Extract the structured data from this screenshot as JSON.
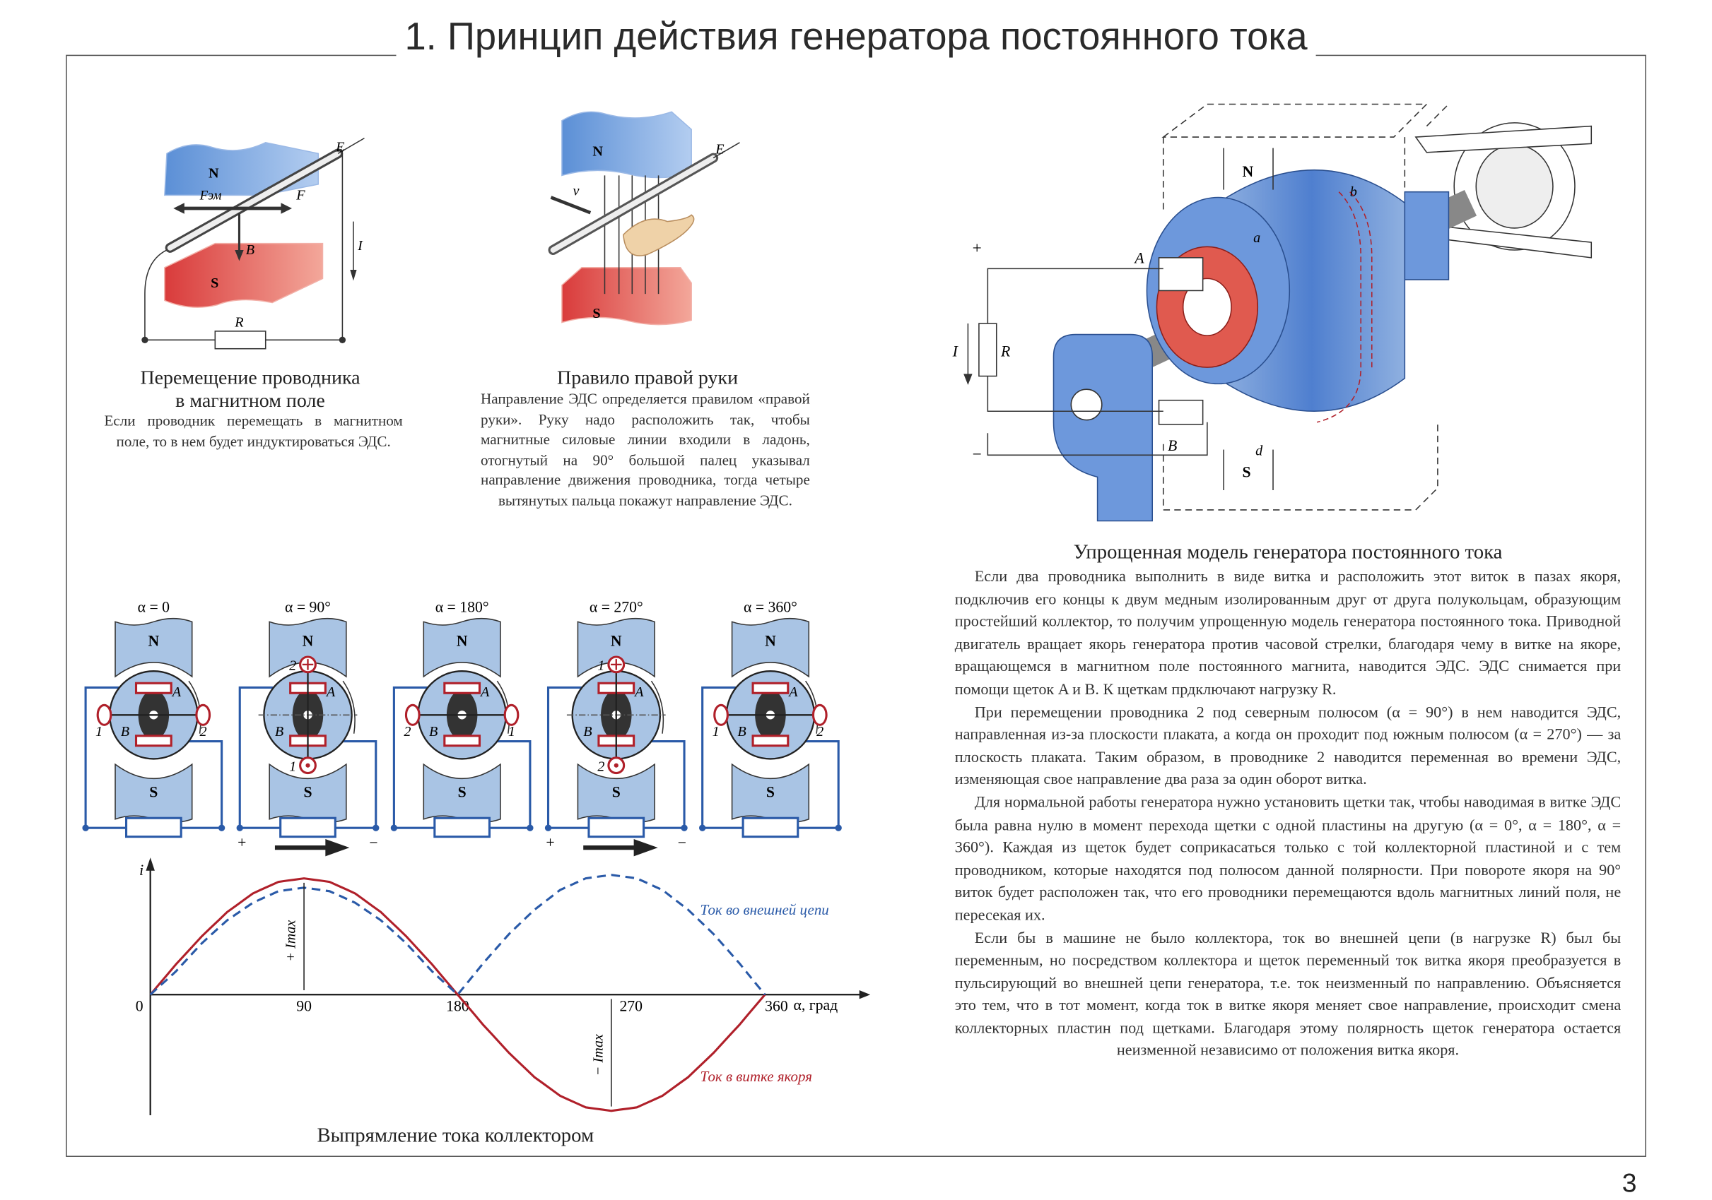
{
  "title": "1. Принцип действия генератора постоянного тока",
  "page_number": "3",
  "colors": {
    "north_pole": "#7ea6db",
    "south_pole": "#e35a5a",
    "wire": "#2a5aa8",
    "conductor": "#b0202a",
    "rotor": "#a9c4e4"
  },
  "figure_conductor": {
    "labels": {
      "north": "N",
      "south": "S",
      "emf": "E",
      "force": "F",
      "force_em": "Fэм",
      "induction": "B",
      "current": "I",
      "resistor": "R"
    },
    "heading_line1": "Перемещение проводника",
    "heading_line2": "в магнитном поле",
    "text": "Если проводник перемещать в магнитном поле, то в нем будет индуктироваться ЭДС."
  },
  "figure_right_hand": {
    "labels": {
      "north": "N",
      "south": "S",
      "emf": "E",
      "velocity": "v"
    },
    "heading": "Правило правой руки",
    "text": "Направление ЭДС определяется правилом «правой руки». Руку надо расположить так, чтобы магнитные силовые линии входили в ладонь, отогнутый на 90° большой палец указывал направление движения проводника, тогда четыре вытянутых пальца покажут направление ЭДС."
  },
  "figure_generator": {
    "labels": {
      "north": "N",
      "south": "S",
      "brush_a": "A",
      "brush_b": "B",
      "point_a": "a",
      "point_b": "b",
      "point_d": "d",
      "resistor": "R",
      "current": "I",
      "plus": "+",
      "minus": "−"
    },
    "heading": "Упрощенная модель генератора постоянного тока",
    "paragraphs": [
      "Если два проводника выполнить в виде витка и расположить этот виток в пазах якоря, подключив его концы к двум медным изолированным друг от друга полукольцам, образующим простейший коллектор, то получим упрощенную модель генератора постоянного тока. Приводной двигатель вращает якорь генератора против часовой стрелки, благодаря чему в витке на якоре, вращающемся в магнитном поле постоянного магнита, наводится ЭДС. ЭДС снимается при помощи щеток A и B. К щеткам прдключают нагрузку R.",
      "При перемещении проводника 2 под северным полюсом (α = 90°) в нем наводится ЭДС, направленная из-за плоскости плаката, а когда он проходит под южным полюсом (α = 270°) — за плоскость плаката. Таким образом, в проводнике 2 наводится переменная во времени ЭДС, изменяющая свое направление два раза за один оборот витка.",
      "Для нормальной работы генератора нужно установить щетки так, чтобы наводимая в витке ЭДС была равна нулю в момент перехода щетки с одной пластины на другую (α = 0°, α = 180°, α = 360°). Каждая из щеток будет соприкасаться только с той коллекторной пластиной и с тем проводником, которые находятся под полюсом данной полярности. При повороте якоря на 90° виток будет расположен так, что его проводники перемещаются вдоль магнитных линий поля, не пересекая их.",
      "Если бы в машине не было коллектора, ток во внешней цепи (в нагрузке R) был бы переменным, но посредством коллектора и щеток переменный ток витка якоря преобразуется в пульсирующий во внешней цепи генератора, т.е. ток неизменный по направлению. Объясняется это тем, что в тот момент, когда ток в витке якоря меняет свое направление, происходит смена коллекторных пластин под щетками. Благодаря этому полярность щеток генератора остается неизменной независимо от положения витка якоря."
    ]
  },
  "rotation_diagrams": [
    {
      "alpha": "α = 0",
      "north": "N",
      "south": "S",
      "brush_a": "A",
      "brush_b": "B",
      "layout": "horizontal",
      "left": "1",
      "right": "2",
      "polarity": null
    },
    {
      "alpha": "α = 90°",
      "north": "N",
      "south": "S",
      "brush_a": "A",
      "brush_b": "B",
      "layout": "vertical",
      "top": "2",
      "top_mark": "cross",
      "bottom": "1",
      "bottom_mark": "dot",
      "polarity": {
        "plus": "+",
        "minus": "−"
      }
    },
    {
      "alpha": "α = 180°",
      "north": "N",
      "south": "S",
      "brush_a": "A",
      "brush_b": "B",
      "layout": "horizontal",
      "left": "2",
      "right": "1",
      "polarity": null
    },
    {
      "alpha": "α = 270°",
      "north": "N",
      "south": "S",
      "brush_a": "A",
      "brush_b": "B",
      "layout": "vertical",
      "top": "1",
      "top_mark": "cross",
      "bottom": "2",
      "bottom_mark": "dot",
      "polarity": {
        "plus": "+",
        "minus": "−"
      }
    },
    {
      "alpha": "α = 360°",
      "north": "N",
      "south": "S",
      "brush_a": "A",
      "brush_b": "B",
      "layout": "horizontal",
      "left": "1",
      "right": "2",
      "polarity": null
    }
  ],
  "chart_data": {
    "type": "line",
    "title": "Выпрямление тока коллектором",
    "xlabel": "α, град",
    "ylabel": "i",
    "xlim": [
      0,
      360
    ],
    "ylim": [
      -1,
      1
    ],
    "x_ticks": [
      "0",
      "90",
      "180",
      "270",
      "360"
    ],
    "grid": false,
    "annotations": {
      "plus_max": "+ Imax",
      "minus_max": "− Imax"
    },
    "x": [
      0,
      15,
      30,
      45,
      60,
      75,
      90,
      105,
      120,
      135,
      150,
      165,
      180,
      195,
      210,
      225,
      240,
      255,
      270,
      285,
      300,
      315,
      330,
      345,
      360
    ],
    "series": [
      {
        "name": "Ток в витке якоря",
        "color": "#b0202a",
        "style": "solid",
        "values": [
          0,
          0.26,
          0.5,
          0.71,
          0.87,
          0.97,
          1,
          0.97,
          0.87,
          0.71,
          0.5,
          0.26,
          0,
          -0.26,
          -0.5,
          -0.71,
          -0.87,
          -0.97,
          -1,
          -0.97,
          -0.87,
          -0.71,
          -0.5,
          -0.26,
          0
        ]
      },
      {
        "name": "Ток во внешней цепи",
        "color": "#2a5aa8",
        "style": "dashed",
        "values": [
          0,
          0.2,
          0.44,
          0.64,
          0.79,
          0.89,
          0.92,
          0.89,
          0.79,
          0.64,
          0.44,
          0.2,
          0,
          0.27,
          0.52,
          0.73,
          0.9,
          1,
          1.03,
          1,
          0.9,
          0.73,
          0.52,
          0.27,
          0
        ]
      }
    ]
  }
}
